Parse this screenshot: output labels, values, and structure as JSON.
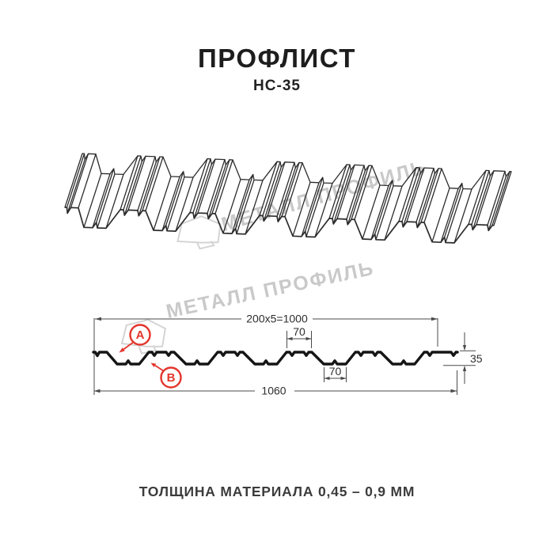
{
  "header": {
    "title": "ПРОФЛИСТ",
    "subtitle": "НС-35"
  },
  "watermark": {
    "text": "МЕТАЛЛ ПРОФИЛЬ"
  },
  "dimensions": {
    "working_width": "200x5=1000",
    "crest_width": "70",
    "valley_width": "70",
    "profile_height": "35",
    "overall_width": "1060"
  },
  "badges": {
    "a": "A",
    "b": "B"
  },
  "footer": {
    "thickness_note": "ТОЛЩИНА МАТЕРИАЛА 0,45 – 0,9 ММ"
  },
  "colors": {
    "line": "#2c2c2c",
    "profile": "#151515",
    "dim": "#4a4a4a",
    "accent_red": "#e4352b",
    "watermark": "#c9c9c9",
    "watermark_logo": "#d4d4d4"
  }
}
